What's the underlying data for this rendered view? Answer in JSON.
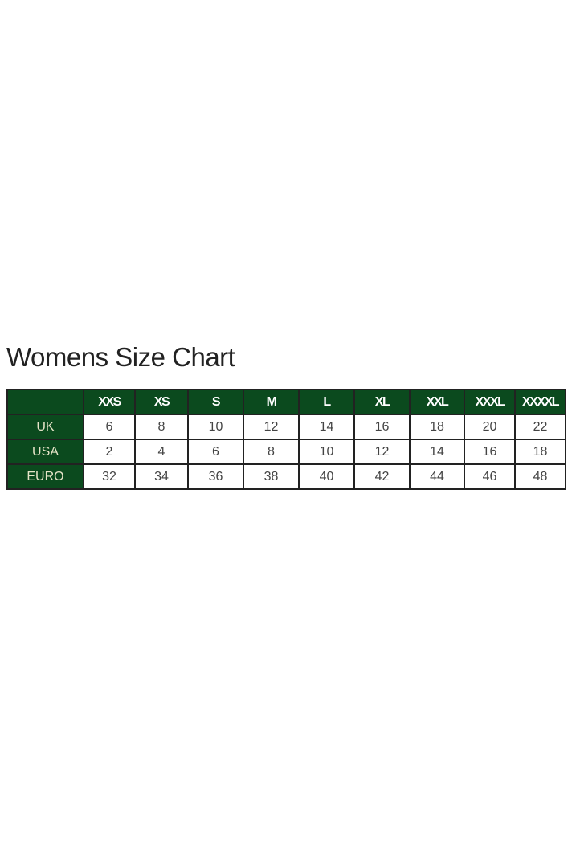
{
  "title": "Womens Size Chart",
  "colors": {
    "header_bg": "#0b4a1e",
    "header_text": "#ffffff",
    "row_label_text": "#e6e4c8"
  },
  "table": {
    "columns": [
      "XXS",
      "XS",
      "S",
      "M",
      "L",
      "XL",
      "XXL",
      "XXXL",
      "XXXXL"
    ],
    "rows": [
      {
        "label": "UK",
        "values": [
          "6",
          "8",
          "10",
          "12",
          "14",
          "16",
          "18",
          "20",
          "22"
        ]
      },
      {
        "label": "USA",
        "values": [
          "2",
          "4",
          "6",
          "8",
          "10",
          "12",
          "14",
          "16",
          "18"
        ]
      },
      {
        "label": "EURO",
        "values": [
          "32",
          "34",
          "36",
          "38",
          "40",
          "42",
          "44",
          "46",
          "48"
        ]
      }
    ]
  }
}
